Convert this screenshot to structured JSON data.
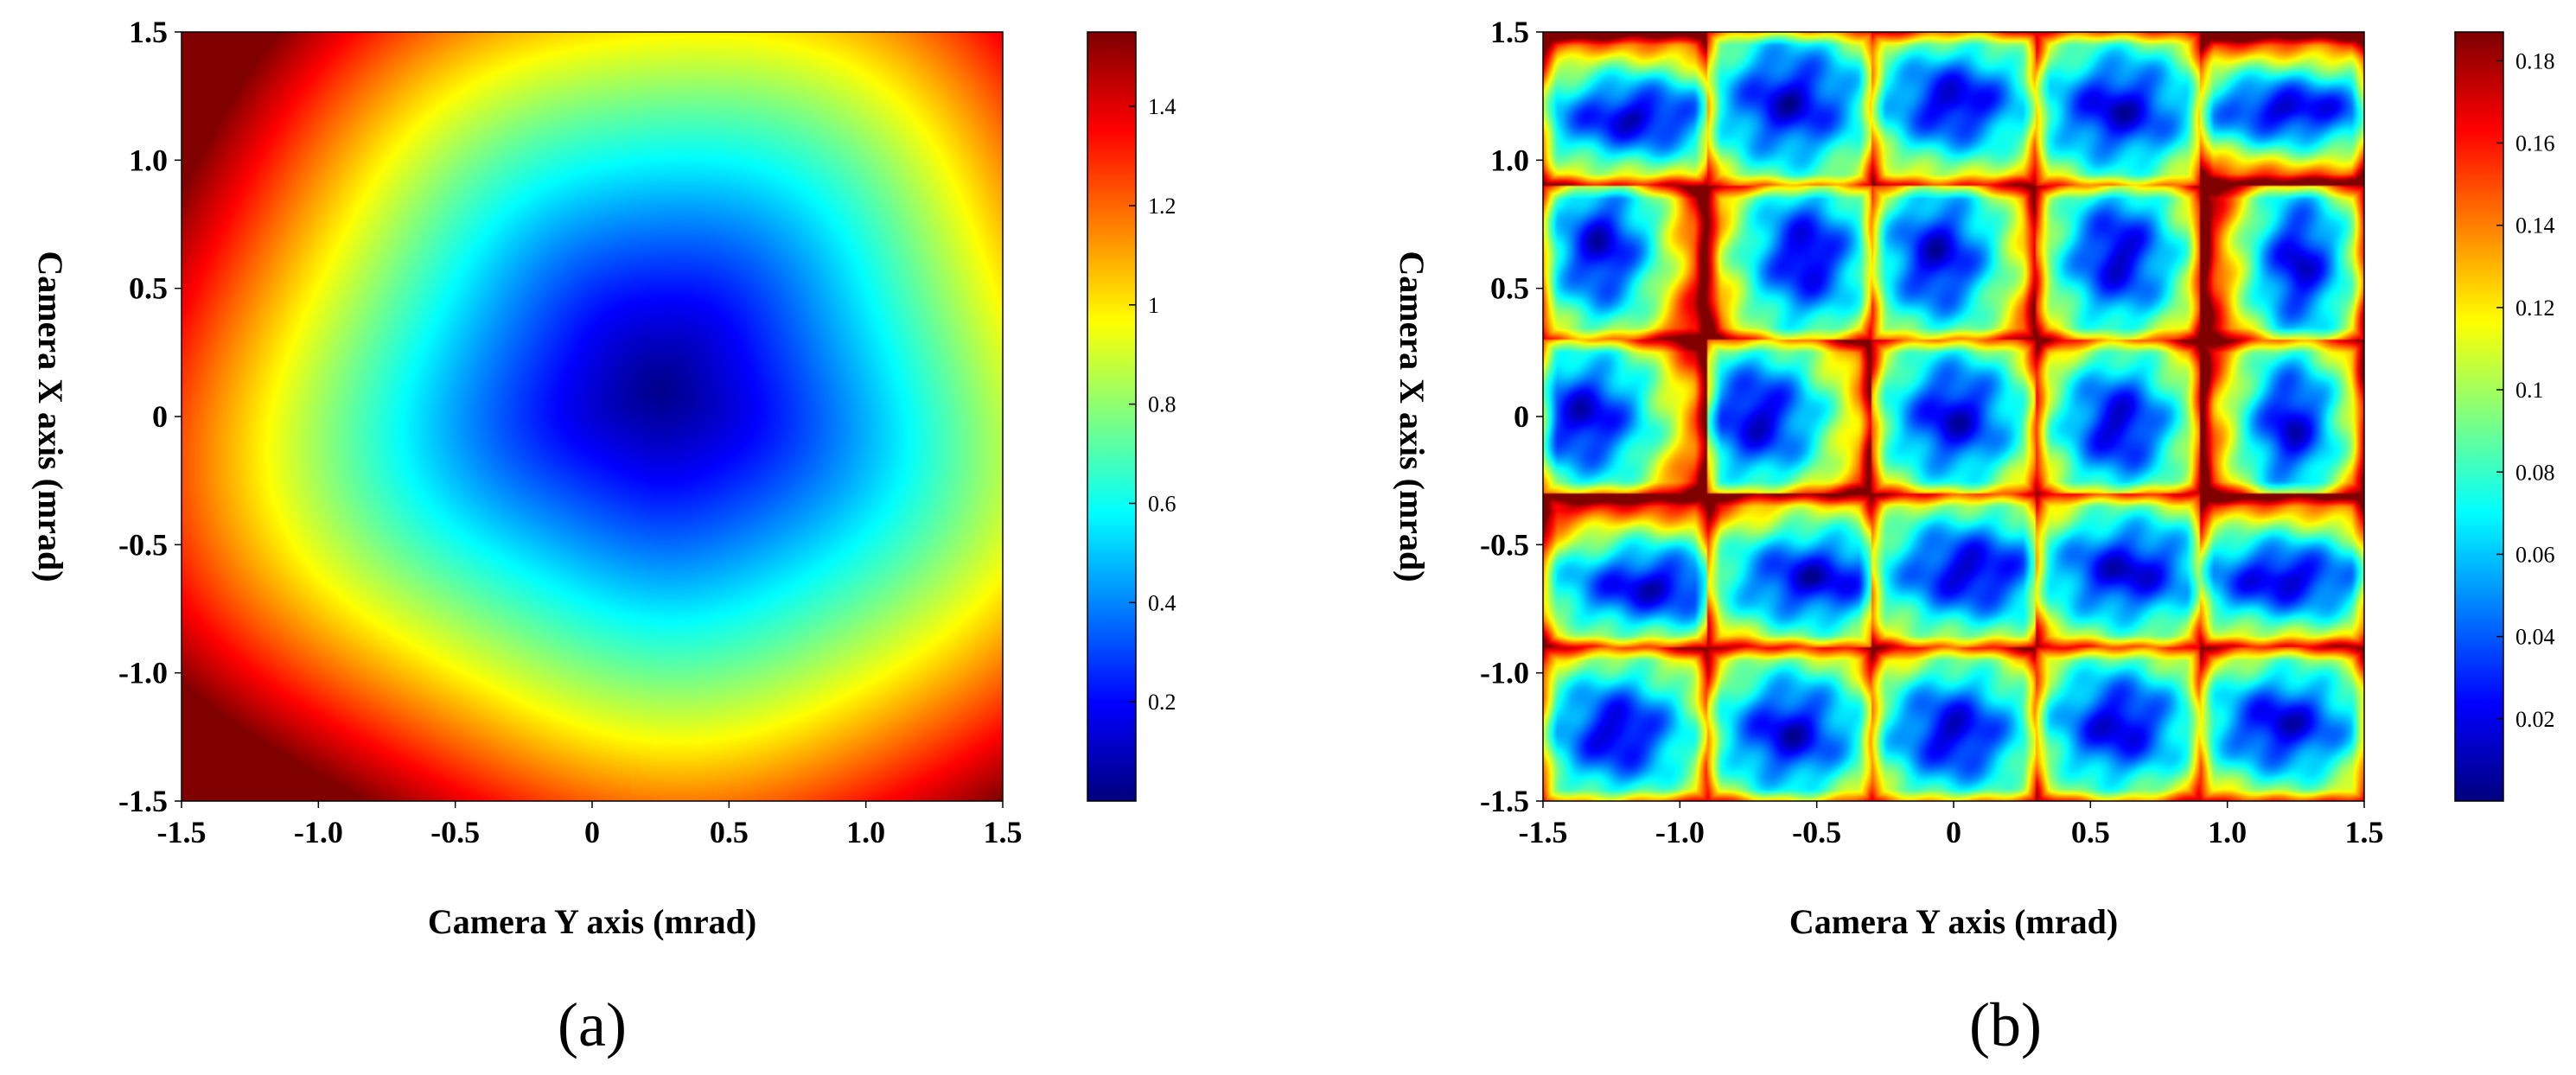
{
  "chart_data": [
    {
      "panel": "(a)",
      "type": "heatmap",
      "xlabel": "Camera Y axis (mrad)",
      "ylabel": "Camera X axis (mrad)",
      "xlim": [
        -1.5,
        1.5
      ],
      "ylim": [
        -1.5,
        1.5
      ],
      "xticks": [
        "-1.5",
        "-1.0",
        "-0.5",
        "0",
        "0.5",
        "1.0",
        "1.5"
      ],
      "yticks": [
        "-1.5",
        "-1.0",
        "-0.5",
        "0",
        "0.5",
        "1.0",
        "1.5"
      ],
      "colorbar": {
        "range": [
          0.0,
          1.55
        ],
        "ticks": [
          "0.2",
          "0.4",
          "0.6",
          "0.8",
          "1",
          "1.2",
          "1.4"
        ],
        "colormap": "jet"
      },
      "field": {
        "center": [
          0.25,
          0.1
        ],
        "min_value": 0.0,
        "max_value": 1.55,
        "description_values": "radially increasing error from minimum near center (0.25, 0.1) to ~1.5 at corners"
      }
    },
    {
      "panel": "(b)",
      "type": "heatmap",
      "xlabel": "Camera Y axis (mrad)",
      "ylabel": "Camera X axis (mrad)",
      "xlim": [
        -1.5,
        1.5
      ],
      "ylim": [
        -1.5,
        1.5
      ],
      "xticks": [
        "-1.5",
        "-1.0",
        "-0.5",
        "0",
        "0.5",
        "1.0",
        "1.5"
      ],
      "yticks": [
        "-1.5",
        "-1.0",
        "-0.5",
        "0",
        "0.5",
        "1.0",
        "1.5"
      ],
      "colorbar": {
        "range": [
          0.0,
          0.187
        ],
        "ticks": [
          "0.02",
          "0.04",
          "0.06",
          "0.08",
          "0.1",
          "0.12",
          "0.14",
          "0.16",
          "0.18"
        ],
        "colormap": "jet"
      },
      "grid": {
        "rows": 5,
        "cols": 5
      },
      "cells": [
        [
          [
            0.55,
            0.55,
            0.75,
            0.35
          ],
          [
            0.5,
            0.45,
            0.6,
            0.55
          ],
          [
            0.5,
            0.45,
            0.6,
            0.45
          ],
          [
            0.5,
            0.5,
            0.6,
            0.5
          ],
          [
            0.55,
            0.5,
            0.8,
            0.3
          ]
        ],
        [
          [
            0.35,
            0.4,
            0.4,
            0.6
          ],
          [
            0.6,
            0.45,
            0.45,
            0.6
          ],
          [
            0.4,
            0.45,
            0.45,
            0.6
          ],
          [
            0.5,
            0.45,
            0.45,
            0.6
          ],
          [
            0.6,
            0.5,
            0.35,
            0.65
          ]
        ],
        [
          [
            0.25,
            0.5,
            0.5,
            0.55
          ],
          [
            0.3,
            0.5,
            0.5,
            0.55
          ],
          [
            0.5,
            0.5,
            0.5,
            0.55
          ],
          [
            0.5,
            0.55,
            0.45,
            0.55
          ],
          [
            0.55,
            0.55,
            0.35,
            0.6
          ]
        ],
        [
          [
            0.65,
            0.6,
            0.75,
            0.35
          ],
          [
            0.65,
            0.55,
            0.7,
            0.4
          ],
          [
            0.6,
            0.5,
            0.7,
            0.45
          ],
          [
            0.55,
            0.5,
            0.65,
            0.45
          ],
          [
            0.5,
            0.55,
            0.75,
            0.35
          ]
        ],
        [
          [
            0.45,
            0.55,
            0.55,
            0.5
          ],
          [
            0.5,
            0.55,
            0.55,
            0.5
          ],
          [
            0.5,
            0.55,
            0.55,
            0.5
          ],
          [
            0.5,
            0.5,
            0.55,
            0.5
          ],
          [
            0.5,
            0.5,
            0.6,
            0.45
          ]
        ]
      ]
    }
  ],
  "panel_labels": [
    "(a)",
    "(b)"
  ]
}
